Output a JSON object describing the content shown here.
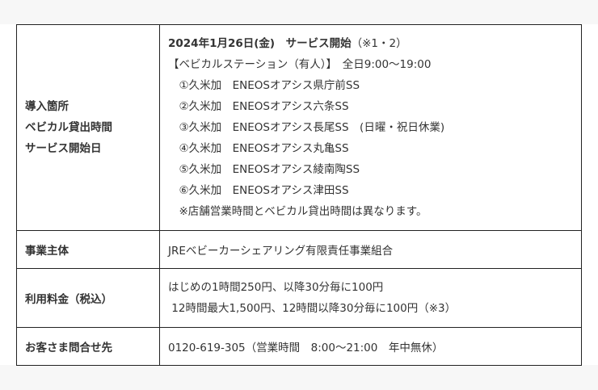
{
  "rows": [
    {
      "header": [
        "導入箇所",
        "ベビカル貸出時間",
        "サービス開始日"
      ],
      "lines": [
        {
          "bold": "2024年1月26日(金)　サービス開始",
          "rest": "（※1・2）"
        },
        {
          "bold": "",
          "rest": "【ベビカルステーション（有人）】　全日9:00～19:00"
        },
        {
          "bold": "",
          "rest": "　①久米加　ENEOSオアシス県庁前SS"
        },
        {
          "bold": "",
          "rest": "　②久米加　ENEOSオアシス六条SS"
        },
        {
          "bold": "",
          "rest": "　③久米加　ENEOSオアシス長尾SS　(日曜・祝日休業)"
        },
        {
          "bold": "",
          "rest": "　④久米加　ENEOSオアシス丸亀SS"
        },
        {
          "bold": "",
          "rest": "　⑤久米加　ENEOSオアシス綾南陶SS"
        },
        {
          "bold": "",
          "rest": "　⑥久米加　ENEOSオアシス津田SS"
        },
        {
          "bold": "",
          "rest": "　※店舗営業時間とベビカル貸出時間は異なります。"
        }
      ]
    },
    {
      "header": [
        "事業主体"
      ],
      "lines": [
        {
          "bold": "",
          "rest": "JREベビーカーシェアリング有限責任事業組合"
        }
      ]
    },
    {
      "header": [
        "利用料金（税込）"
      ],
      "lines": [
        {
          "bold": "",
          "rest": "はじめの1時間250円、以降30分毎に100円"
        },
        {
          "bold": "",
          "rest": " 12時間最大1,500円、12時間以降30分毎に100円（※3）"
        }
      ]
    },
    {
      "header": [
        "お客さま問合せ先"
      ],
      "lines": [
        {
          "bold": "",
          "rest": "0120-619-305（営業時間　8:00～21:00　年中無休）"
        }
      ]
    }
  ]
}
